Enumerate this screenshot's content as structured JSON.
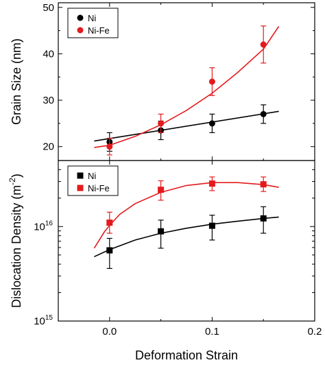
{
  "chart_data": [
    {
      "type": "scatter",
      "panel": "top",
      "xlabel": "Deformation Strain",
      "ylabel": "Grain Size (nm)",
      "xlim": [
        -0.05,
        0.2
      ],
      "ylim": [
        17,
        51
      ],
      "yscale": "linear",
      "x_ticks": [
        "0.0",
        "0.1",
        "0.2"
      ],
      "y_ticks": [
        "20",
        "30",
        "40",
        "50"
      ],
      "legend_position": "top-left",
      "series": [
        {
          "name": "Ni",
          "marker": "circle",
          "color": "#000000",
          "x": [
            0.0,
            0.05,
            0.1,
            0.15
          ],
          "y": [
            21,
            23.5,
            25,
            27
          ],
          "err": [
            2,
            2,
            2,
            2
          ],
          "fit_x": [
            -0.015,
            0.165
          ],
          "fit_y": [
            21.2,
            27.6
          ]
        },
        {
          "name": "Ni-Fe",
          "marker": "circle",
          "color": "#e41a1c",
          "x": [
            0.0,
            0.05,
            0.1,
            0.15
          ],
          "y": [
            20,
            25,
            34,
            42
          ],
          "err": [
            1.8,
            2,
            3,
            4
          ],
          "fit_x": [
            -0.015,
            0.0,
            0.025,
            0.05,
            0.075,
            0.1,
            0.125,
            0.15,
            0.165
          ],
          "fit_y": [
            19.8,
            20.3,
            22.2,
            24.7,
            27.8,
            31.5,
            36.0,
            41.0,
            45.9
          ]
        }
      ]
    },
    {
      "type": "scatter",
      "panel": "bottom",
      "xlabel": "Deformation Strain",
      "ylabel_text": "Dislocation Density (m",
      "ylabel_sup": "-2",
      "ylabel_close": ")",
      "xlim": [
        -0.05,
        0.2
      ],
      "ylim": [
        1000000000000000.0,
        5e+16
      ],
      "yscale": "log",
      "x_ticks": [
        "0.0",
        "0.1",
        "0.2"
      ],
      "y_ticks": [
        {
          "value": 1000000000000000.0,
          "base": "10",
          "exp": "15"
        },
        {
          "value": 1e+16,
          "base": "10",
          "exp": "16"
        }
      ],
      "legend_position": "top-left",
      "series": [
        {
          "name": "Ni",
          "marker": "square",
          "color": "#000000",
          "x": [
            0.0,
            0.05,
            0.1,
            0.15
          ],
          "y": [
            5600000000000000.0,
            8900000000000000.0,
            1.02e+16,
            1.22e+16
          ],
          "err_lo": [
            3600000000000000.0,
            5900000000000000.0,
            7200000000000000.0,
            8500000000000000.0
          ],
          "err_hi": [
            7500000000000000.0,
            1.17e+16,
            1.32e+16,
            1.62e+16
          ],
          "fit_x": [
            -0.015,
            0.0,
            0.025,
            0.05,
            0.075,
            0.1,
            0.125,
            0.15,
            0.165
          ],
          "fit_y": [
            4800000000000000.0,
            5700000000000000.0,
            7200000000000000.0,
            8500000000000000.0,
            9600000000000000.0,
            1.06e+16,
            1.14e+16,
            1.22e+16,
            1.26e+16
          ]
        },
        {
          "name": "Ni-Fe",
          "marker": "square",
          "color": "#e41a1c",
          "x": [
            0.0,
            0.05,
            0.1,
            0.15
          ],
          "y": [
            1.1e+16,
            2.45e+16,
            2.85e+16,
            2.8e+16
          ],
          "err_lo": [
            8500000000000000.0,
            1.9e+16,
            2.4e+16,
            2.35e+16
          ],
          "err_hi": [
            1.42e+16,
            3.05e+16,
            3.35e+16,
            3.35e+16
          ],
          "fit_x": [
            -0.015,
            -0.005,
            0.0,
            0.01,
            0.025,
            0.05,
            0.075,
            0.1,
            0.125,
            0.15,
            0.165
          ],
          "fit_y": [
            5900000000000000.0,
            8800000000000000.0,
            1.03e+16,
            1.35e+16,
            1.75e+16,
            2.3e+16,
            2.72e+16,
            2.92e+16,
            2.92e+16,
            2.78e+16,
            2.6e+16
          ]
        }
      ]
    }
  ]
}
